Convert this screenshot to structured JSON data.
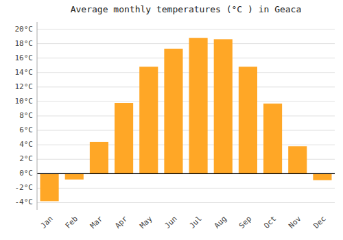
{
  "chart_data": {
    "type": "bar",
    "title": "Average monthly temperatures (°C ) in Geaca",
    "categories": [
      "Jan",
      "Feb",
      "Mar",
      "Apr",
      "May",
      "Jun",
      "Jul",
      "Aug",
      "Sep",
      "Oct",
      "Nov",
      "Dec"
    ],
    "values": [
      -3.8,
      -0.8,
      4.4,
      9.8,
      14.8,
      17.3,
      18.8,
      18.6,
      14.8,
      9.7,
      3.8,
      -0.9
    ],
    "color": "#FFA726",
    "ylim": [
      -5,
      21
    ],
    "yticks": [
      {
        "value": -4,
        "label": "-4°C"
      },
      {
        "value": -2,
        "label": "-2°C"
      },
      {
        "value": 0,
        "label": "0°C"
      },
      {
        "value": 2,
        "label": "2°C"
      },
      {
        "value": 4,
        "label": "4°C"
      },
      {
        "value": 6,
        "label": "6°C"
      },
      {
        "value": 8,
        "label": "8°C"
      },
      {
        "value": 10,
        "label": "10°C"
      },
      {
        "value": 12,
        "label": "12°C"
      },
      {
        "value": 14,
        "label": "14°C"
      },
      {
        "value": 16,
        "label": "16°C"
      },
      {
        "value": 18,
        "label": "18°C"
      },
      {
        "value": 20,
        "label": "20°C"
      }
    ],
    "grid": true
  }
}
